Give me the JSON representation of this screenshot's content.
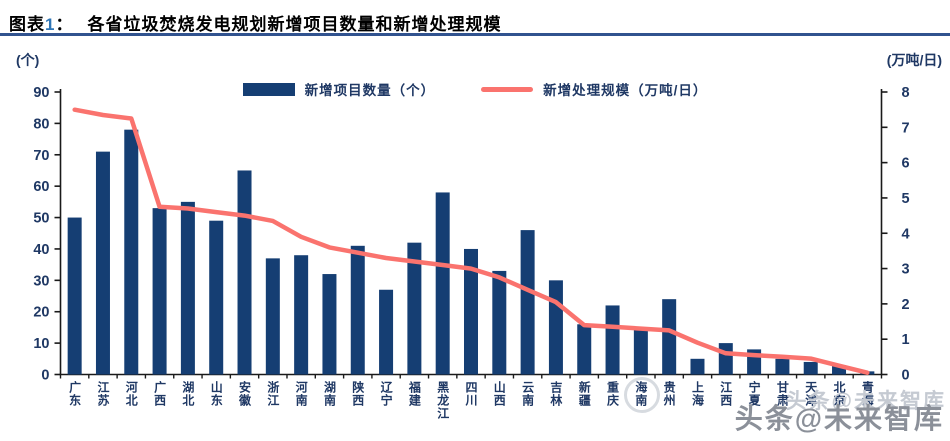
{
  "header": {
    "tag_prefix": "图表",
    "tag_number": "1",
    "tag_colon": "：",
    "title": "各省垃圾焚烧发电规划新增项目数量和新增处理规模"
  },
  "axis_units": {
    "left": "(个)",
    "right": "(万吨/日)"
  },
  "legend": [
    {
      "label": "新增项目数量（个）",
      "type": "bar"
    },
    {
      "label": "新增处理规模（万吨/日）",
      "type": "line"
    }
  ],
  "watermark": {
    "light": "头条@未来智库",
    "dark": "头条@未来智库"
  },
  "colors": {
    "bar": "#153e73",
    "line": "#fa736e",
    "axis_text": "#1f3864",
    "axis_line": "#1a1a1a",
    "title_rule": "#31538f",
    "tag_number_blue": "#2e75b6",
    "watermark_dark": "#8b9099",
    "watermark_light": "#c5cad2"
  },
  "chart_data": {
    "type": "bar+line",
    "title": "各省垃圾焚烧发电规划新增项目数量和新增处理规模",
    "categories": [
      "广东",
      "江苏",
      "河北",
      "广西",
      "湖北",
      "山东",
      "安徽",
      "浙江",
      "河南",
      "湖南",
      "陕西",
      "辽宁",
      "福建",
      "黑龙江",
      "四川",
      "山西",
      "云南",
      "吉林",
      "新疆",
      "重庆",
      "海南",
      "贵州",
      "上海",
      "江西",
      "宁夏",
      "甘肃",
      "天津",
      "北京",
      "青海"
    ],
    "series": [
      {
        "name": "新增项目数量（个）",
        "type": "bar",
        "axis": "left",
        "values": [
          50,
          71,
          78,
          53,
          55,
          49,
          65,
          37,
          38,
          32,
          41,
          27,
          42,
          58,
          40,
          33,
          46,
          30,
          16,
          22,
          15,
          24,
          5,
          10,
          8,
          5,
          4,
          3,
          1
        ]
      },
      {
        "name": "新增处理规模（万吨/日）",
        "type": "line",
        "axis": "right",
        "values": [
          7.5,
          7.35,
          7.25,
          4.75,
          4.7,
          4.6,
          4.5,
          4.35,
          3.9,
          3.6,
          3.45,
          3.3,
          3.2,
          3.1,
          3.0,
          2.75,
          2.4,
          2.05,
          1.4,
          1.35,
          1.3,
          1.25,
          0.9,
          0.6,
          0.55,
          0.5,
          0.45,
          0.25,
          0.05
        ]
      }
    ],
    "left_axis": {
      "label": "(个)",
      "min": 0,
      "max": 90,
      "step": 10
    },
    "right_axis": {
      "label": "(万吨/日)",
      "min": 0,
      "max": 8,
      "step": 1
    },
    "grid": false,
    "legend_position": "top-center"
  }
}
